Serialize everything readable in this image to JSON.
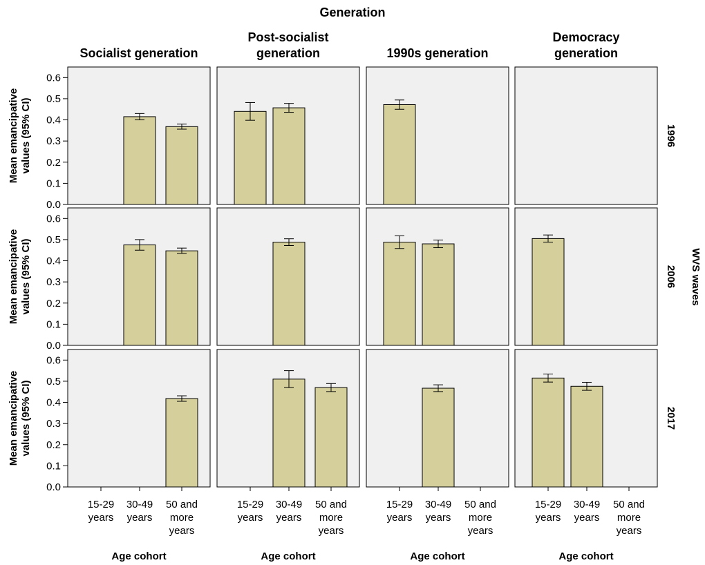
{
  "chart_data": {
    "type": "bar",
    "title": "Generation",
    "column_facets": [
      "Socialist generation",
      "Post-socialist generation",
      "1990s generation",
      "Democracy generation"
    ],
    "column_facet_lines": [
      [
        "Socialist generation"
      ],
      [
        "Post-socialist",
        "generation"
      ],
      [
        "1990s generation"
      ],
      [
        "Democracy",
        "generation"
      ]
    ],
    "row_facet_title": "WVS waves",
    "row_facets": [
      "1996",
      "2006",
      "2017"
    ],
    "categories": [
      "15-29 years",
      "30-49 years",
      "50 and more years"
    ],
    "category_lines": [
      [
        "15-29",
        "years"
      ],
      [
        "30-49",
        "years"
      ],
      [
        "50 and",
        "more",
        "years"
      ]
    ],
    "xlabel": "Age cohort",
    "ylabel_lines": [
      "Mean emancipative",
      "values (95% CI)"
    ],
    "ylim": [
      0,
      0.65
    ],
    "yticks": [
      "0.0",
      "0.1",
      "0.2",
      "0.3",
      "0.4",
      "0.5",
      "0.6"
    ],
    "bar_color": "#d4cf9b",
    "panel_bg": "#f0f0f0",
    "panels": [
      [
        [
          null,
          {
            "mean": 0.415,
            "lo": 0.4,
            "hi": 0.43
          },
          {
            "mean": 0.368,
            "lo": 0.356,
            "hi": 0.38
          }
        ],
        [
          {
            "mean": 0.44,
            "lo": 0.398,
            "hi": 0.482
          },
          {
            "mean": 0.457,
            "lo": 0.436,
            "hi": 0.478
          },
          null
        ],
        [
          {
            "mean": 0.472,
            "lo": 0.45,
            "hi": 0.494
          },
          null,
          null
        ],
        [
          null,
          null,
          null
        ]
      ],
      [
        [
          null,
          {
            "mean": 0.475,
            "lo": 0.45,
            "hi": 0.5
          },
          {
            "mean": 0.447,
            "lo": 0.435,
            "hi": 0.46
          }
        ],
        [
          null,
          {
            "mean": 0.488,
            "lo": 0.472,
            "hi": 0.504
          },
          null
        ],
        [
          {
            "mean": 0.488,
            "lo": 0.458,
            "hi": 0.518
          },
          {
            "mean": 0.48,
            "lo": 0.462,
            "hi": 0.498
          },
          null
        ],
        [
          {
            "mean": 0.505,
            "lo": 0.488,
            "hi": 0.522
          },
          null,
          null
        ]
      ],
      [
        [
          null,
          null,
          {
            "mean": 0.418,
            "lo": 0.405,
            "hi": 0.431
          }
        ],
        [
          null,
          {
            "mean": 0.51,
            "lo": 0.47,
            "hi": 0.55
          },
          {
            "mean": 0.47,
            "lo": 0.451,
            "hi": 0.489
          }
        ],
        [
          null,
          {
            "mean": 0.467,
            "lo": 0.451,
            "hi": 0.483
          },
          null
        ],
        [
          {
            "mean": 0.515,
            "lo": 0.496,
            "hi": 0.534
          },
          {
            "mean": 0.476,
            "lo": 0.457,
            "hi": 0.495
          },
          null
        ]
      ]
    ]
  }
}
